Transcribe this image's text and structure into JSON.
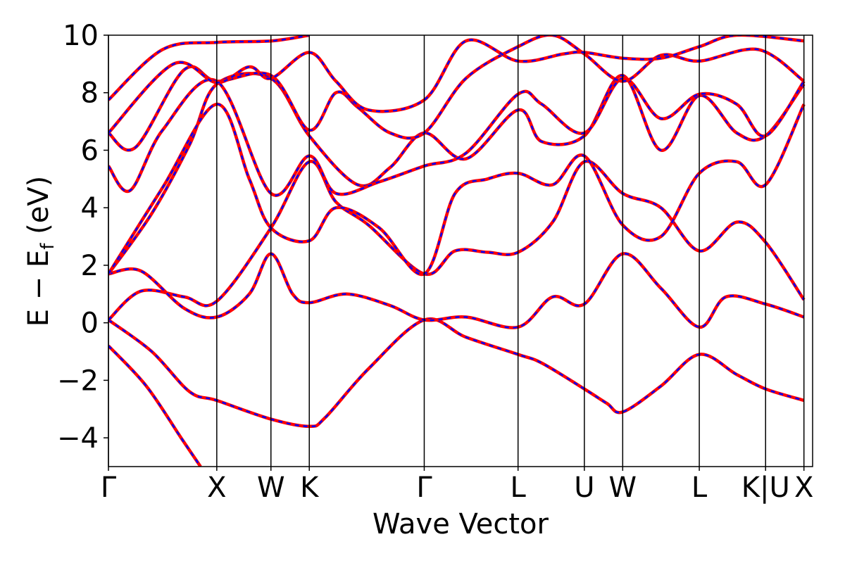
{
  "chart_data": {
    "type": "line",
    "title": "",
    "xlabel": "Wave Vector",
    "ylabel": "E − E_f (eV)",
    "ylabel_main": "E − E",
    "ylabel_sub": "f",
    "ylabel_tail": " (eV)",
    "ylim": [
      -5,
      10
    ],
    "xlim": [
      0,
      6.5
    ],
    "yticks": [
      -4,
      -2,
      0,
      2,
      4,
      6,
      8,
      10
    ],
    "ytick_labels": [
      "−4",
      "−2",
      "0",
      "2",
      "4",
      "6",
      "8",
      "10"
    ],
    "kpoints": [
      {
        "label": "Γ",
        "x": 0.0
      },
      {
        "label": "X",
        "x": 1.0
      },
      {
        "label": "W",
        "x": 1.5
      },
      {
        "label": "K",
        "x": 1.854
      },
      {
        "label": "Γ",
        "x": 2.915
      },
      {
        "label": "L",
        "x": 3.781
      },
      {
        "label": "U",
        "x": 4.393
      },
      {
        "label": "W",
        "x": 4.747
      },
      {
        "label": "L",
        "x": 5.454
      },
      {
        "label": "K|U",
        "x": 6.066
      },
      {
        "label": "X",
        "x": 6.42
      }
    ],
    "series": [
      {
        "style": "red solid",
        "bands": [
          [
            [
              0,
              -0.8
            ],
            [
              0.35,
              -2.2
            ],
            [
              0.67,
              -4.0
            ],
            [
              0.85,
              -5.0
            ]
          ],
          [
            [
              0,
              0.1
            ],
            [
              0.4,
              -1.0
            ],
            [
              0.75,
              -2.4
            ],
            [
              1.0,
              -2.7
            ],
            [
              1.5,
              -3.35
            ],
            [
              1.854,
              -3.6
            ],
            [
              2.0,
              -3.3
            ],
            [
              2.4,
              -1.6
            ],
            [
              2.915,
              0.1
            ],
            [
              3.3,
              -0.5
            ],
            [
              3.781,
              -1.1
            ],
            [
              4.0,
              -1.4
            ],
            [
              4.393,
              -2.3
            ],
            [
              4.6,
              -2.8
            ],
            [
              4.747,
              -3.1
            ],
            [
              5.1,
              -2.2
            ],
            [
              5.454,
              -1.1
            ],
            [
              5.8,
              -1.8
            ],
            [
              6.066,
              -2.3
            ],
            [
              6.42,
              -2.7
            ]
          ],
          [
            [
              0,
              0.1
            ],
            [
              0.3,
              1.1
            ],
            [
              0.7,
              0.9
            ],
            [
              1.0,
              0.75
            ],
            [
              1.5,
              3.3
            ],
            [
              1.854,
              5.6
            ],
            [
              2.1,
              4.2
            ],
            [
              2.4,
              3.4
            ],
            [
              2.915,
              1.7
            ],
            [
              3.2,
              2.5
            ],
            [
              3.5,
              2.45
            ],
            [
              3.781,
              2.45
            ],
            [
              4.1,
              3.5
            ],
            [
              4.393,
              5.6
            ],
            [
              4.747,
              4.5
            ],
            [
              5.1,
              4.0
            ],
            [
              5.454,
              2.5
            ],
            [
              5.8,
              3.5
            ],
            [
              6.066,
              2.8
            ],
            [
              6.42,
              0.8
            ]
          ],
          [
            [
              0,
              1.7
            ],
            [
              0.3,
              1.8
            ],
            [
              0.7,
              0.5
            ],
            [
              1.0,
              0.2
            ],
            [
              1.3,
              1.0
            ],
            [
              1.5,
              2.4
            ],
            [
              1.7,
              1.0
            ],
            [
              1.854,
              0.7
            ],
            [
              2.2,
              1.0
            ],
            [
              2.6,
              0.6
            ],
            [
              2.915,
              0.1
            ],
            [
              3.3,
              0.2
            ],
            [
              3.781,
              -0.15
            ],
            [
              4.1,
              0.9
            ],
            [
              4.393,
              0.65
            ],
            [
              4.747,
              2.4
            ],
            [
              5.1,
              1.2
            ],
            [
              5.454,
              -0.15
            ],
            [
              5.7,
              0.9
            ],
            [
              6.066,
              0.65
            ],
            [
              6.42,
              0.2
            ]
          ],
          [
            [
              0,
              1.7
            ],
            [
              0.4,
              3.8
            ],
            [
              0.75,
              6.2
            ],
            [
              1.0,
              8.3
            ],
            [
              1.5,
              8.5
            ],
            [
              1.854,
              6.5
            ],
            [
              2.3,
              4.8
            ],
            [
              2.6,
              5.4
            ],
            [
              2.915,
              6.6
            ],
            [
              3.3,
              5.7
            ],
            [
              3.781,
              7.4
            ],
            [
              4.0,
              6.3
            ],
            [
              4.393,
              6.5
            ],
            [
              4.747,
              8.6
            ],
            [
              5.1,
              6.0
            ],
            [
              5.454,
              7.9
            ],
            [
              5.8,
              6.6
            ],
            [
              6.066,
              6.5
            ],
            [
              6.42,
              8.3
            ]
          ],
          [
            [
              0,
              1.7
            ],
            [
              0.5,
              4.7
            ],
            [
              1.0,
              7.6
            ],
            [
              1.3,
              5.0
            ],
            [
              1.5,
              3.3
            ],
            [
              1.854,
              2.85
            ],
            [
              2.1,
              4.0
            ],
            [
              2.5,
              3.3
            ],
            [
              2.915,
              1.7
            ],
            [
              3.2,
              4.5
            ],
            [
              3.5,
              5.0
            ],
            [
              3.781,
              5.2
            ],
            [
              4.1,
              4.8
            ],
            [
              4.393,
              5.8
            ],
            [
              4.747,
              3.4
            ],
            [
              5.1,
              3.0
            ],
            [
              5.454,
              5.2
            ],
            [
              5.8,
              5.6
            ],
            [
              6.066,
              4.8
            ],
            [
              6.42,
              7.6
            ]
          ],
          [
            [
              0,
              5.45
            ],
            [
              0.2,
              4.6
            ],
            [
              0.5,
              6.7
            ],
            [
              1.0,
              8.4
            ],
            [
              1.5,
              4.5
            ],
            [
              1.854,
              5.8
            ],
            [
              2.1,
              4.5
            ],
            [
              2.5,
              4.9
            ],
            [
              2.915,
              5.45
            ],
            [
              3.3,
              5.9
            ],
            [
              3.781,
              7.95
            ],
            [
              4.0,
              7.6
            ],
            [
              4.393,
              6.6
            ],
            [
              4.747,
              8.5
            ],
            [
              5.1,
              7.1
            ],
            [
              5.454,
              7.95
            ],
            [
              5.8,
              7.6
            ],
            [
              6.066,
              6.5
            ],
            [
              6.42,
              8.4
            ]
          ],
          [
            [
              0,
              6.6
            ],
            [
              0.25,
              6.1
            ],
            [
              0.7,
              8.8
            ],
            [
              1.0,
              8.4
            ],
            [
              1.5,
              8.6
            ],
            [
              1.854,
              6.7
            ],
            [
              2.1,
              8.0
            ],
            [
              2.3,
              7.5
            ],
            [
              2.6,
              6.6
            ],
            [
              2.915,
              6.6
            ],
            [
              3.3,
              8.5
            ],
            [
              3.781,
              9.6
            ],
            [
              4.1,
              10.0
            ],
            [
              4.393,
              9.35
            ],
            [
              4.747,
              8.4
            ],
            [
              5.1,
              9.3
            ],
            [
              5.454,
              9.1
            ],
            [
              6.0,
              9.5
            ],
            [
              6.42,
              8.4
            ]
          ],
          [
            [
              0,
              6.6
            ],
            [
              0.6,
              9.0
            ],
            [
              1.0,
              8.35
            ],
            [
              1.3,
              8.9
            ],
            [
              1.5,
              8.5
            ],
            [
              1.854,
              9.4
            ],
            [
              2.1,
              8.4
            ],
            [
              2.4,
              7.4
            ],
            [
              2.915,
              7.75
            ],
            [
              3.3,
              9.8
            ],
            [
              3.781,
              9.1
            ],
            [
              4.2,
              9.35
            ],
            [
              4.393,
              9.4
            ],
            [
              4.747,
              9.2
            ],
            [
              5.1,
              9.2
            ],
            [
              5.454,
              9.6
            ],
            [
              5.8,
              10.0
            ],
            [
              6.42,
              9.8
            ]
          ],
          [
            [
              0,
              7.75
            ],
            [
              0.5,
              9.5
            ],
            [
              1.0,
              9.75
            ],
            [
              1.5,
              9.8
            ],
            [
              1.854,
              10.0
            ]
          ]
        ]
      },
      {
        "style": "blue dashed"
      }
    ]
  }
}
